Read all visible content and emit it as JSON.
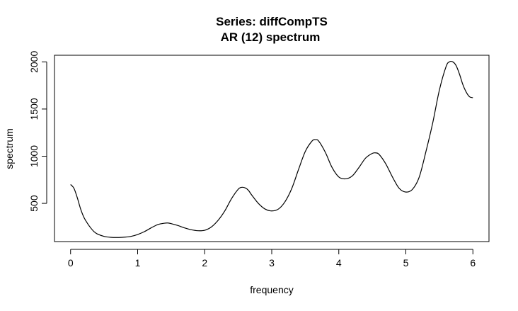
{
  "chart_data": {
    "type": "line",
    "title": "Series: diffCompTS",
    "subtitle": "AR (12) spectrum",
    "xlabel": "frequency",
    "ylabel": "spectrum",
    "xlim": [
      -0.24,
      6.24
    ],
    "ylim": [
      95,
      2070
    ],
    "x_ticks": [
      0,
      1,
      2,
      3,
      4,
      5,
      6
    ],
    "y_ticks": [
      500,
      1000,
      1500,
      2000
    ],
    "x_tick_labels": [
      "0",
      "1",
      "2",
      "3",
      "4",
      "5",
      "6"
    ],
    "y_tick_labels": [
      "500",
      "1000",
      "1500",
      "2000"
    ],
    "grid": false,
    "series": [
      {
        "color": "#000000",
        "x": [
          0,
          0.05,
          0.1,
          0.15,
          0.2,
          0.25,
          0.3,
          0.35,
          0.4,
          0.5,
          0.6,
          0.7,
          0.8,
          0.9,
          1.0,
          1.1,
          1.2,
          1.3,
          1.4,
          1.45,
          1.5,
          1.6,
          1.7,
          1.8,
          1.9,
          2.0,
          2.1,
          2.2,
          2.3,
          2.4,
          2.5,
          2.55,
          2.6,
          2.65,
          2.7,
          2.8,
          2.9,
          3.0,
          3.1,
          3.2,
          3.3,
          3.4,
          3.5,
          3.6,
          3.65,
          3.7,
          3.8,
          3.9,
          4.0,
          4.1,
          4.2,
          4.3,
          4.4,
          4.5,
          4.55,
          4.6,
          4.7,
          4.8,
          4.9,
          5.0,
          5.1,
          5.2,
          5.3,
          5.4,
          5.5,
          5.6,
          5.65,
          5.7,
          5.75,
          5.8,
          5.85,
          5.9,
          5.95,
          6.0
        ],
        "y": [
          700,
          660,
          560,
          440,
          350,
          290,
          240,
          200,
          175,
          150,
          140,
          138,
          142,
          150,
          170,
          200,
          240,
          275,
          290,
          292,
          285,
          265,
          240,
          220,
          210,
          215,
          250,
          320,
          420,
          550,
          650,
          670,
          665,
          640,
          590,
          500,
          440,
          420,
          440,
          520,
          660,
          860,
          1050,
          1160,
          1175,
          1160,
          1040,
          880,
          780,
          760,
          790,
          880,
          980,
          1030,
          1035,
          1020,
          920,
          780,
          660,
          620,
          650,
          780,
          1050,
          1350,
          1700,
          1950,
          2000,
          2000,
          1960,
          1870,
          1760,
          1680,
          1630,
          1620
        ]
      }
    ]
  }
}
